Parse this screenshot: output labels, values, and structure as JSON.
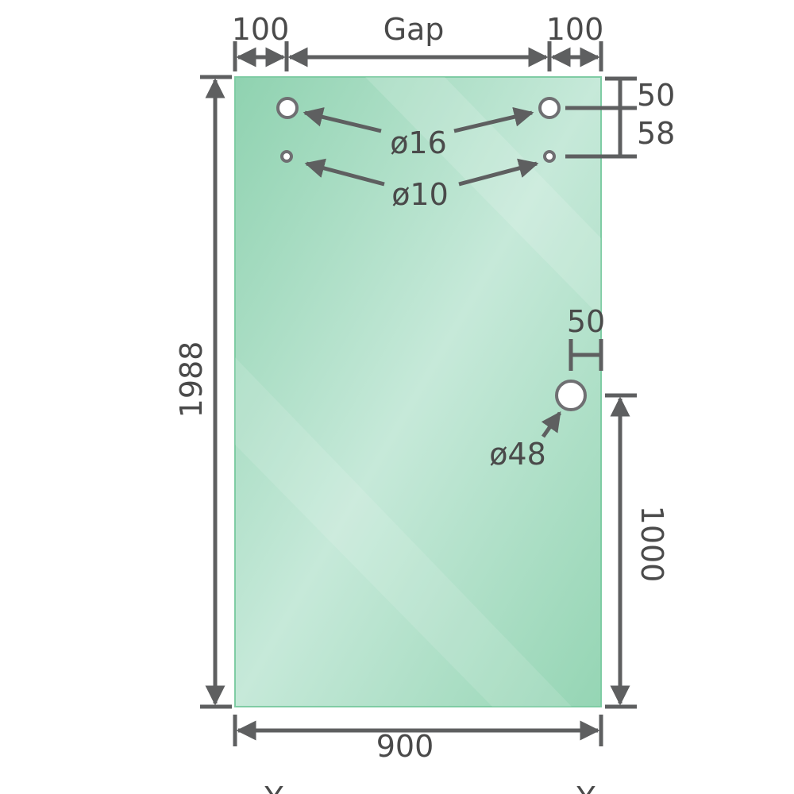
{
  "drawing": {
    "glass_color": "#9fd8bb",
    "line_color": "#5e5f60",
    "dimensions": {
      "left_offset": "100",
      "gap": "Gap",
      "right_offset": "100",
      "top_to_hole": "50",
      "hole_spacing": "58",
      "height": "1988",
      "width": "900",
      "handle_edge_offset": "50",
      "handle_height": "1000"
    },
    "holes": {
      "upper": "ø16",
      "lower": "ø10",
      "handle": "ø48"
    },
    "footer_marks": [
      "Y",
      "Y"
    ]
  }
}
